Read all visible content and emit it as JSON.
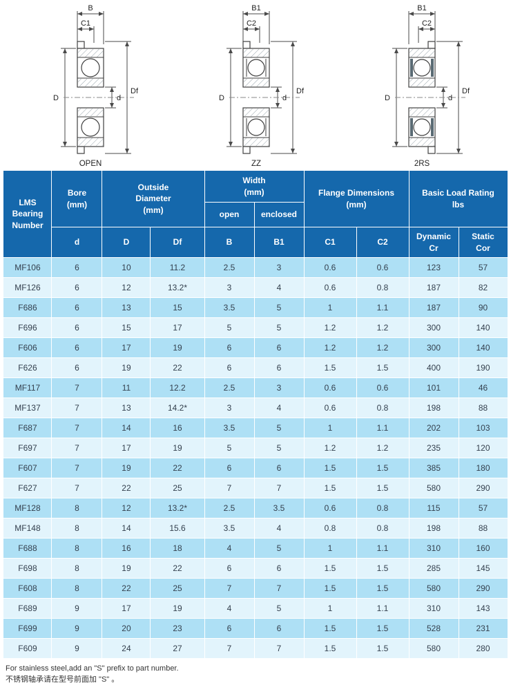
{
  "theme": {
    "header_bg": "#1568ac",
    "row_dark": "#aee0f5",
    "row_light": "#e2f4fc"
  },
  "diagrams": {
    "items": [
      {
        "caption": "OPEN",
        "width_label": "B",
        "flange_width_label": "C1",
        "outer_dia_label": "D",
        "bore_label": "d",
        "flange_dia_label": "Df"
      },
      {
        "caption": "ZZ",
        "width_label": "B1",
        "flange_width_label": "C2",
        "outer_dia_label": "D",
        "bore_label": "d",
        "flange_dia_label": "Df"
      },
      {
        "caption": "2RS",
        "width_label": "B1",
        "flange_width_label": "C2",
        "outer_dia_label": "D",
        "bore_label": "d",
        "flange_dia_label": "Df"
      }
    ]
  },
  "table": {
    "groups": {
      "lms": "LMS\nBearing\nNumber",
      "bore": "Bore\n(mm)",
      "od": "Outside\nDiameter\n(mm)",
      "width": "Width\n(mm)",
      "flange": "Flange Dimensions\n(mm)",
      "load": "Basic Load Rating\nlbs"
    },
    "sub": {
      "open": "open",
      "enclosed": "enclosed"
    },
    "cols": [
      "d",
      "D",
      "Df",
      "B",
      "B1",
      "C1",
      "C2",
      "Dynamic\nCr",
      "Static\nCor"
    ],
    "rows": [
      [
        "MF106",
        "6",
        "10",
        "11.2",
        "2.5",
        "3",
        "0.6",
        "0.6",
        "123",
        "57"
      ],
      [
        "MF126",
        "6",
        "12",
        "13.2*",
        "3",
        "4",
        "0.6",
        "0.8",
        "187",
        "82"
      ],
      [
        "F686",
        "6",
        "13",
        "15",
        "3.5",
        "5",
        "1",
        "1.1",
        "187",
        "90"
      ],
      [
        "F696",
        "6",
        "15",
        "17",
        "5",
        "5",
        "1.2",
        "1.2",
        "300",
        "140"
      ],
      [
        "F606",
        "6",
        "17",
        "19",
        "6",
        "6",
        "1.2",
        "1.2",
        "300",
        "140"
      ],
      [
        "F626",
        "6",
        "19",
        "22",
        "6",
        "6",
        "1.5",
        "1.5",
        "400",
        "190"
      ],
      [
        "MF117",
        "7",
        "11",
        "12.2",
        "2.5",
        "3",
        "0.6",
        "0.6",
        "101",
        "46"
      ],
      [
        "MF137",
        "7",
        "13",
        "14.2*",
        "3",
        "4",
        "0.6",
        "0.8",
        "198",
        "88"
      ],
      [
        "F687",
        "7",
        "14",
        "16",
        "3.5",
        "5",
        "1",
        "1.1",
        "202",
        "103"
      ],
      [
        "F697",
        "7",
        "17",
        "19",
        "5",
        "5",
        "1.2",
        "1.2",
        "235",
        "120"
      ],
      [
        "F607",
        "7",
        "19",
        "22",
        "6",
        "6",
        "1.5",
        "1.5",
        "385",
        "180"
      ],
      [
        "F627",
        "7",
        "22",
        "25",
        "7",
        "7",
        "1.5",
        "1.5",
        "580",
        "290"
      ],
      [
        "MF128",
        "8",
        "12",
        "13.2*",
        "2.5",
        "3.5",
        "0.6",
        "0.8",
        "115",
        "57"
      ],
      [
        "MF148",
        "8",
        "14",
        "15.6",
        "3.5",
        "4",
        "0.8",
        "0.8",
        "198",
        "88"
      ],
      [
        "F688",
        "8",
        "16",
        "18",
        "4",
        "5",
        "1",
        "1.1",
        "310",
        "160"
      ],
      [
        "F698",
        "8",
        "19",
        "22",
        "6",
        "6",
        "1.5",
        "1.5",
        "285",
        "145"
      ],
      [
        "F608",
        "8",
        "22",
        "25",
        "7",
        "7",
        "1.5",
        "1.5",
        "580",
        "290"
      ],
      [
        "F689",
        "9",
        "17",
        "19",
        "4",
        "5",
        "1",
        "1.1",
        "310",
        "143"
      ],
      [
        "F699",
        "9",
        "20",
        "23",
        "6",
        "6",
        "1.5",
        "1.5",
        "528",
        "231"
      ],
      [
        "F609",
        "9",
        "24",
        "27",
        "7",
        "7",
        "1.5",
        "1.5",
        "580",
        "280"
      ]
    ]
  },
  "footer": {
    "line1": "For stainless steel,add an \"S\" prefix to part number.",
    "line2": "不锈钢轴承请在型号前面加 \"S\" 。"
  }
}
